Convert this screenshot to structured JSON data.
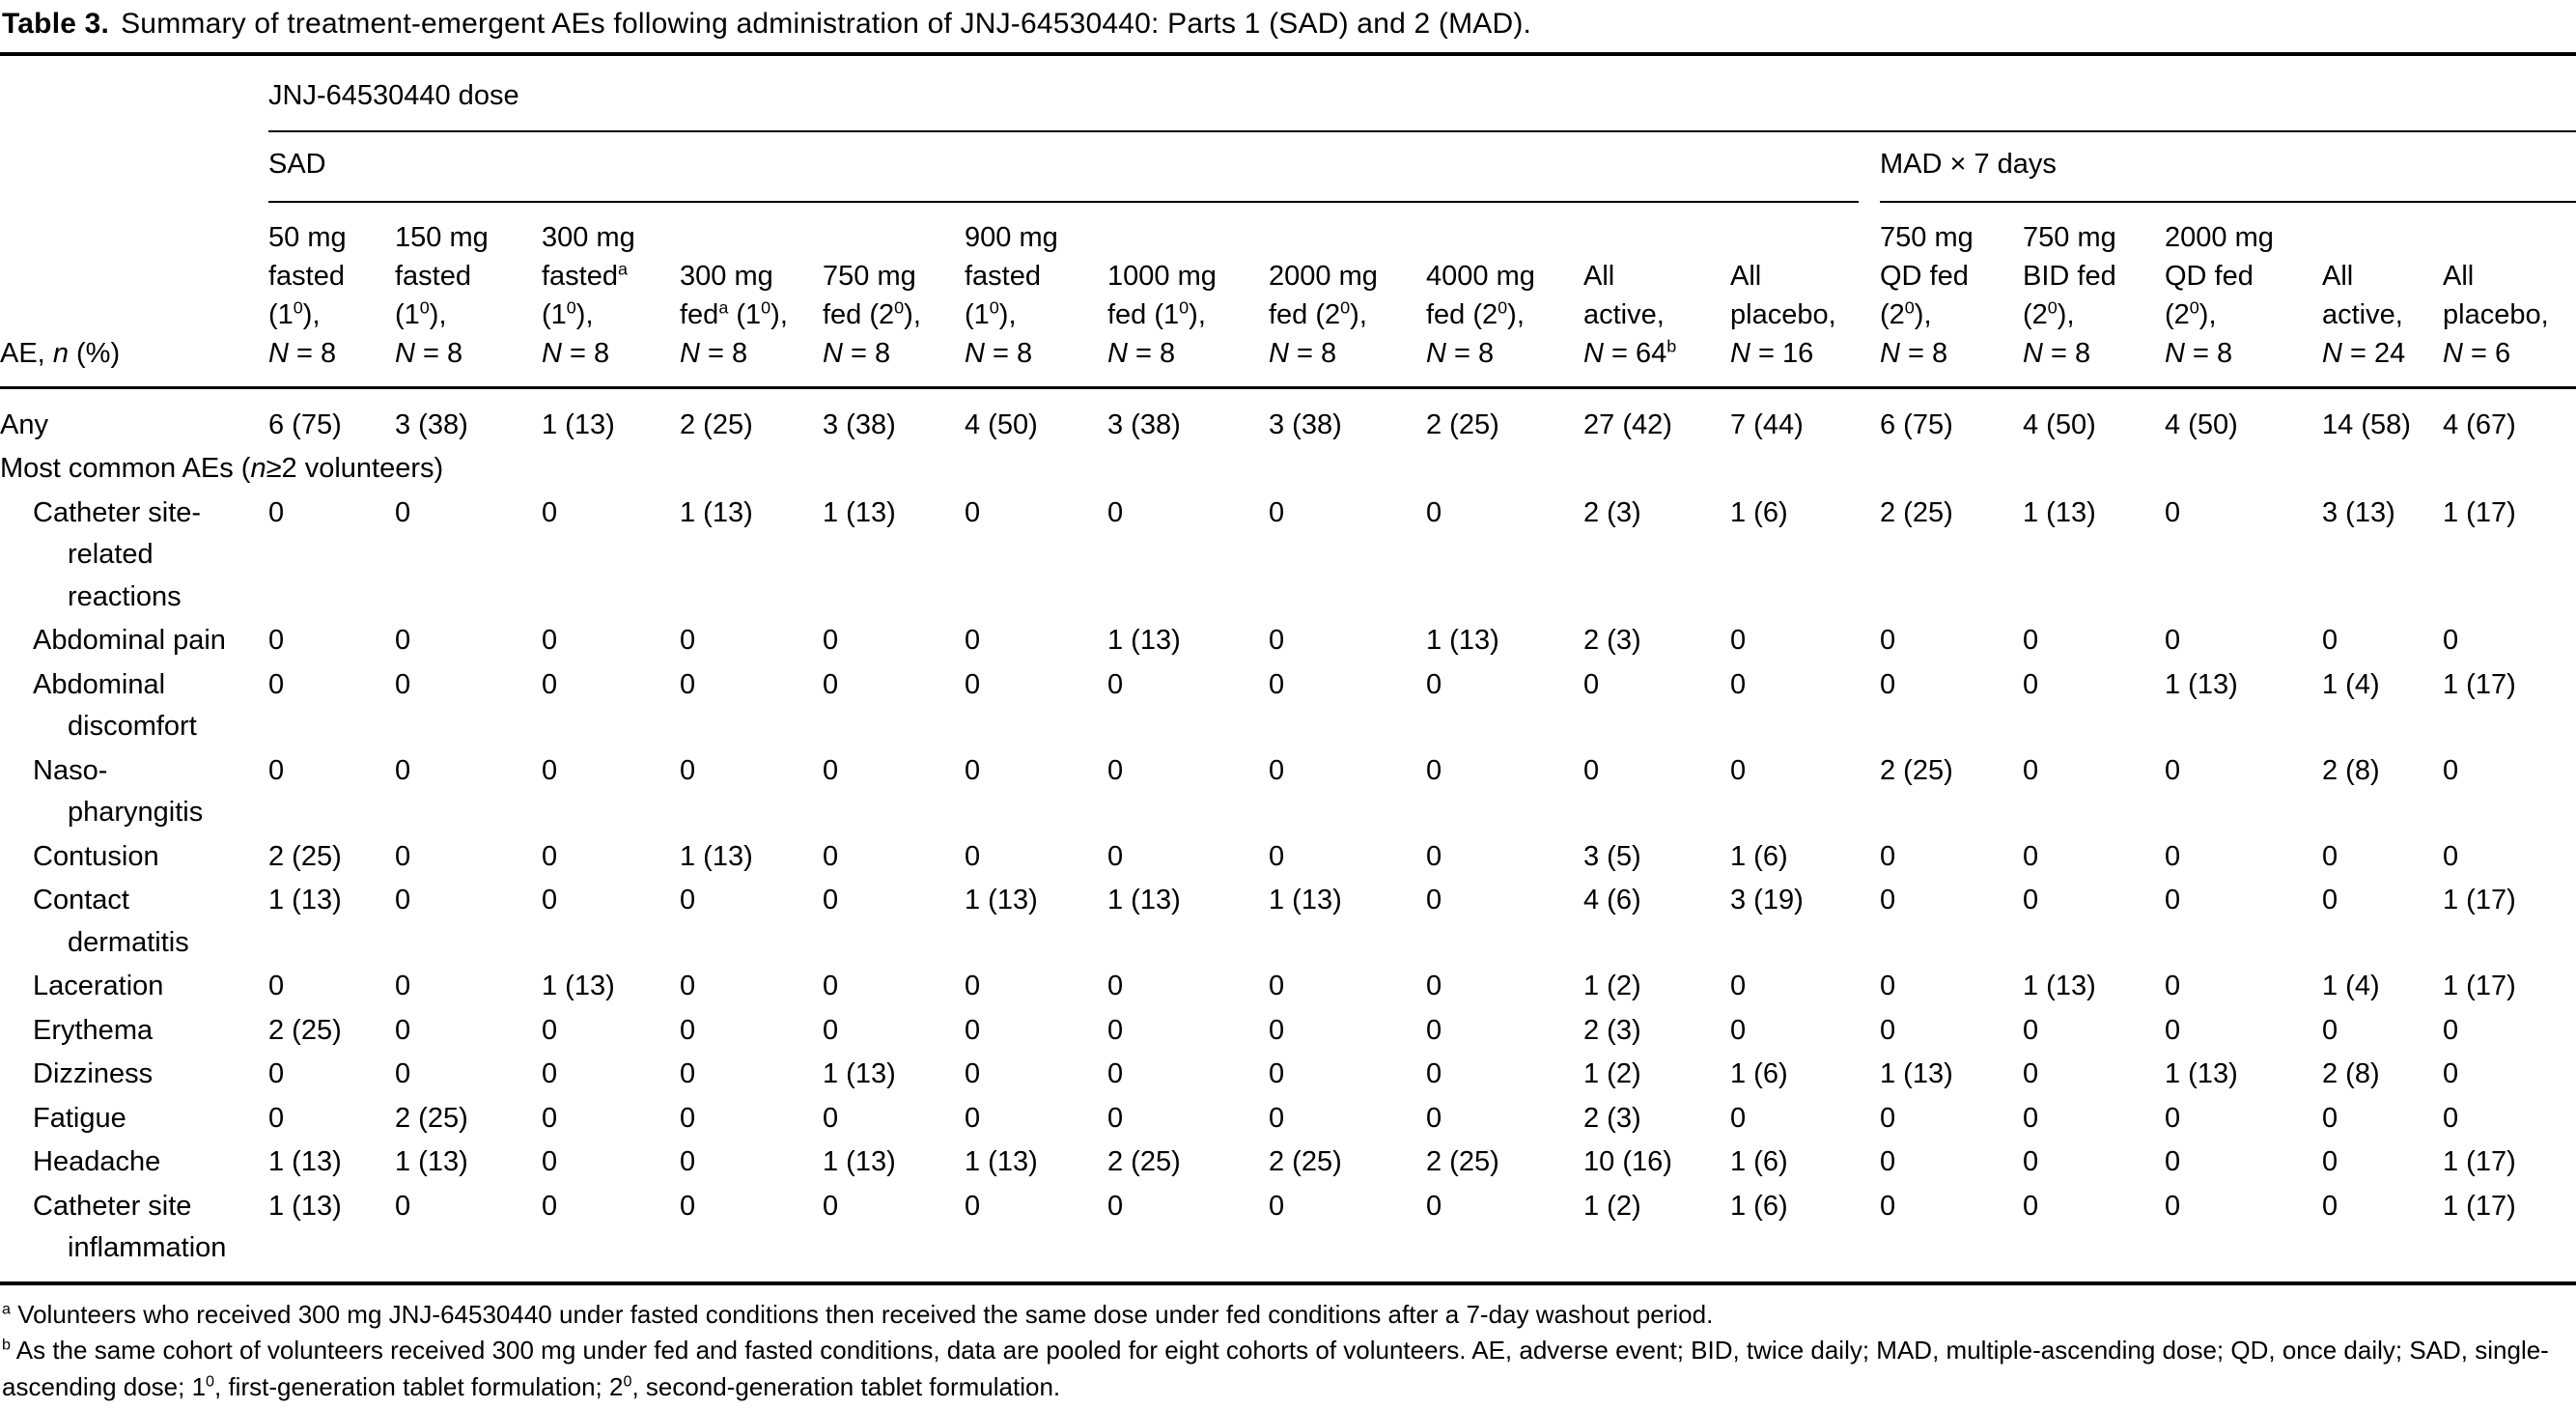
{
  "title": {
    "label": "Table 3.",
    "text": "Summary of treatment-emergent AEs following administration of JNJ-64530440: Parts 1 (SAD) and 2 (MAD)."
  },
  "table": {
    "dose_group_header": "JNJ-64530440 dose",
    "sad_group_header": "SAD",
    "mad_group_header": "MAD × 7 days",
    "row_header_label": "AE, *n* (%)",
    "columns": [
      "50 mg\nfasted\n(1^{0}),\n*N* = 8",
      "150 mg\nfasted\n(1^{0}),\n*N* = 8",
      "300 mg\nfasted^{a}\n(1^{0}),\n*N* = 8",
      "300 mg\nfed^{a} (1^{0}),\n*N* = 8",
      "750 mg\nfed (2^{0}),\n*N* = 8",
      "900 mg\nfasted\n(1^{0}),\n*N* = 8",
      "1000 mg\nfed (1^{0}),\n*N* = 8",
      "2000 mg\nfed (2^{0}),\n*N* = 8",
      "4000 mg\nfed (2^{0}),\n*N* = 8",
      "All\nactive,\n*N* = 64^{b}",
      "All\nplacebo,\n*N* = 16",
      "750 mg\nQD fed\n(2^{0}),\n*N* = 8",
      "750 mg\nBID fed\n(2^{0}),\n*N* = 8",
      "2000 mg\nQD fed\n(2^{0}),\n*N* = 8",
      "All\nactive,\n*N* = 24",
      "All\nplacebo,\n*N* = 6"
    ],
    "rows": [
      {
        "label": "Any",
        "indent": false,
        "cells": [
          "6 (75)",
          "3 (38)",
          "1 (13)",
          "2 (25)",
          "3 (38)",
          "4 (50)",
          "3 (38)",
          "3 (38)",
          "2 (25)",
          "27 (42)",
          "7 (44)",
          "6 (75)",
          "4 (50)",
          "4 (50)",
          "14 (58)",
          "4 (67)"
        ]
      },
      {
        "label": "Most common AEs (*n*≥2 volunteers)",
        "section": true
      },
      {
        "label": "Catheter site-\nrelated\nreactions",
        "indent": true,
        "cells": [
          "0",
          "0",
          "0",
          "1 (13)",
          "1 (13)",
          "0",
          "0",
          "0",
          "0",
          "2 (3)",
          "1 (6)",
          "2 (25)",
          "1 (13)",
          "0",
          "3 (13)",
          "1 (17)"
        ]
      },
      {
        "label": "Abdominal pain",
        "indent": true,
        "cells": [
          "0",
          "0",
          "0",
          "0",
          "0",
          "0",
          "1 (13)",
          "0",
          "1 (13)",
          "2 (3)",
          "0",
          "0",
          "0",
          "0",
          "0",
          "0"
        ]
      },
      {
        "label": "Abdominal\ndiscomfort",
        "indent": true,
        "cells": [
          "0",
          "0",
          "0",
          "0",
          "0",
          "0",
          "0",
          "0",
          "0",
          "0",
          "0",
          "0",
          "0",
          "1 (13)",
          "1 (4)",
          "1 (17)"
        ]
      },
      {
        "label": "Naso-\npharyngitis",
        "indent": true,
        "cells": [
          "0",
          "0",
          "0",
          "0",
          "0",
          "0",
          "0",
          "0",
          "0",
          "0",
          "0",
          "2 (25)",
          "0",
          "0",
          "2 (8)",
          "0"
        ]
      },
      {
        "label": "Contusion",
        "indent": true,
        "cells": [
          "2 (25)",
          "0",
          "0",
          "1 (13)",
          "0",
          "0",
          "0",
          "0",
          "0",
          "3 (5)",
          "1 (6)",
          "0",
          "0",
          "0",
          "0",
          "0"
        ]
      },
      {
        "label": "Contact\ndermatitis",
        "indent": true,
        "cells": [
          "1 (13)",
          "0",
          "0",
          "0",
          "0",
          "1 (13)",
          "1 (13)",
          "1 (13)",
          "0",
          "4 (6)",
          "3 (19)",
          "0",
          "0",
          "0",
          "0",
          "1 (17)"
        ]
      },
      {
        "label": "Laceration",
        "indent": true,
        "cells": [
          "0",
          "0",
          "1 (13)",
          "0",
          "0",
          "0",
          "0",
          "0",
          "0",
          "1 (2)",
          "0",
          "0",
          "1 (13)",
          "0",
          "1 (4)",
          "1 (17)"
        ]
      },
      {
        "label": "Erythema",
        "indent": true,
        "cells": [
          "2 (25)",
          "0",
          "0",
          "0",
          "0",
          "0",
          "0",
          "0",
          "0",
          "2 (3)",
          "0",
          "0",
          "0",
          "0",
          "0",
          "0"
        ]
      },
      {
        "label": "Dizziness",
        "indent": true,
        "cells": [
          "0",
          "0",
          "0",
          "0",
          "1 (13)",
          "0",
          "0",
          "0",
          "0",
          "1 (2)",
          "1 (6)",
          "1 (13)",
          "0",
          "1 (13)",
          "2 (8)",
          "0"
        ]
      },
      {
        "label": "Fatigue",
        "indent": true,
        "cells": [
          "0",
          "2 (25)",
          "0",
          "0",
          "0",
          "0",
          "0",
          "0",
          "0",
          "2 (3)",
          "0",
          "0",
          "0",
          "0",
          "0",
          "0"
        ]
      },
      {
        "label": "Headache",
        "indent": true,
        "cells": [
          "1 (13)",
          "1 (13)",
          "0",
          "0",
          "1 (13)",
          "1 (13)",
          "2 (25)",
          "2 (25)",
          "2 (25)",
          "10 (16)",
          "1 (6)",
          "0",
          "0",
          "0",
          "0",
          "1 (17)"
        ]
      },
      {
        "label": "Catheter site\ninflammation",
        "indent": true,
        "cells": [
          "1 (13)",
          "0",
          "0",
          "0",
          "0",
          "0",
          "0",
          "0",
          "0",
          "1 (2)",
          "1 (6)",
          "0",
          "0",
          "0",
          "0",
          "1 (17)"
        ]
      }
    ]
  },
  "footnotes": [
    {
      "marker": "a",
      "text": "Volunteers who received 300 mg JNJ-64530440 under fasted conditions then received the same dose under fed conditions after a 7-day washout period."
    },
    {
      "marker": "b",
      "text": "As the same cohort of volunteers received 300 mg under fed and fasted conditions, data are pooled for eight cohorts of volunteers. AE, adverse event; BID, twice daily; MAD, multiple-ascending dose; QD, once daily; SAD, single-ascending dose; 1^{0}, first-generation tablet formulation; 2^{0}, second-generation tablet formulation."
    }
  ]
}
